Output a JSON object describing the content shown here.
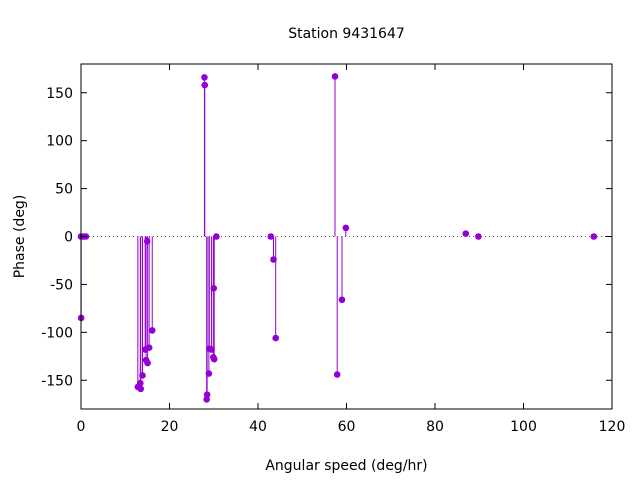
{
  "chart_data": {
    "type": "scatter",
    "style": "impulses with points",
    "title": "Station 9431647",
    "xlabel": "Angular speed (deg/hr)",
    "ylabel": "Phase (deg)",
    "xlim": [
      0,
      120
    ],
    "ylim": [
      -180,
      180
    ],
    "x_ticks": [
      0,
      20,
      40,
      60,
      80,
      100,
      120
    ],
    "y_ticks": [
      -150,
      -100,
      -50,
      0,
      50,
      100,
      150
    ],
    "zero_line": "dotted",
    "grid": false,
    "legend": "none",
    "series": [
      {
        "color": "#9400d3",
        "points": [
          {
            "x": 0.0,
            "y": 0.0
          },
          {
            "x": 0.04,
            "y": -85.0
          },
          {
            "x": 0.55,
            "y": 0.0
          },
          {
            "x": 1.1,
            "y": 0.0
          },
          {
            "x": 12.85,
            "y": -157.0
          },
          {
            "x": 13.4,
            "y": -153.0
          },
          {
            "x": 13.5,
            "y": -159.0
          },
          {
            "x": 13.9,
            "y": -145.0
          },
          {
            "x": 14.5,
            "y": -118.0
          },
          {
            "x": 14.7,
            "y": -129.0
          },
          {
            "x": 14.95,
            "y": -5.0
          },
          {
            "x": 15.05,
            "y": -132.0
          },
          {
            "x": 15.4,
            "y": -116.0
          },
          {
            "x": 16.1,
            "y": -98.0
          },
          {
            "x": 27.9,
            "y": 166.0
          },
          {
            "x": 27.97,
            "y": 158.0
          },
          {
            "x": 28.4,
            "y": -170.0
          },
          {
            "x": 28.5,
            "y": -165.0
          },
          {
            "x": 28.9,
            "y": -143.0
          },
          {
            "x": 29.0,
            "y": -117.0
          },
          {
            "x": 29.5,
            "y": -118.0
          },
          {
            "x": 29.9,
            "y": -126.0
          },
          {
            "x": 30.0,
            "y": -54.0
          },
          {
            "x": 30.1,
            "y": -128.0
          },
          {
            "x": 30.6,
            "y": 0.0
          },
          {
            "x": 42.9,
            "y": 0.0
          },
          {
            "x": 43.5,
            "y": -24.0
          },
          {
            "x": 44.0,
            "y": -106.0
          },
          {
            "x": 57.4,
            "y": 167.0
          },
          {
            "x": 57.9,
            "y": -144.0
          },
          {
            "x": 58.98,
            "y": -66.0
          },
          {
            "x": 59.85,
            "y": 9.0
          },
          {
            "x": 86.95,
            "y": 3.0
          },
          {
            "x": 89.8,
            "y": 0.0
          },
          {
            "x": 115.9,
            "y": 0.0
          }
        ]
      }
    ]
  }
}
